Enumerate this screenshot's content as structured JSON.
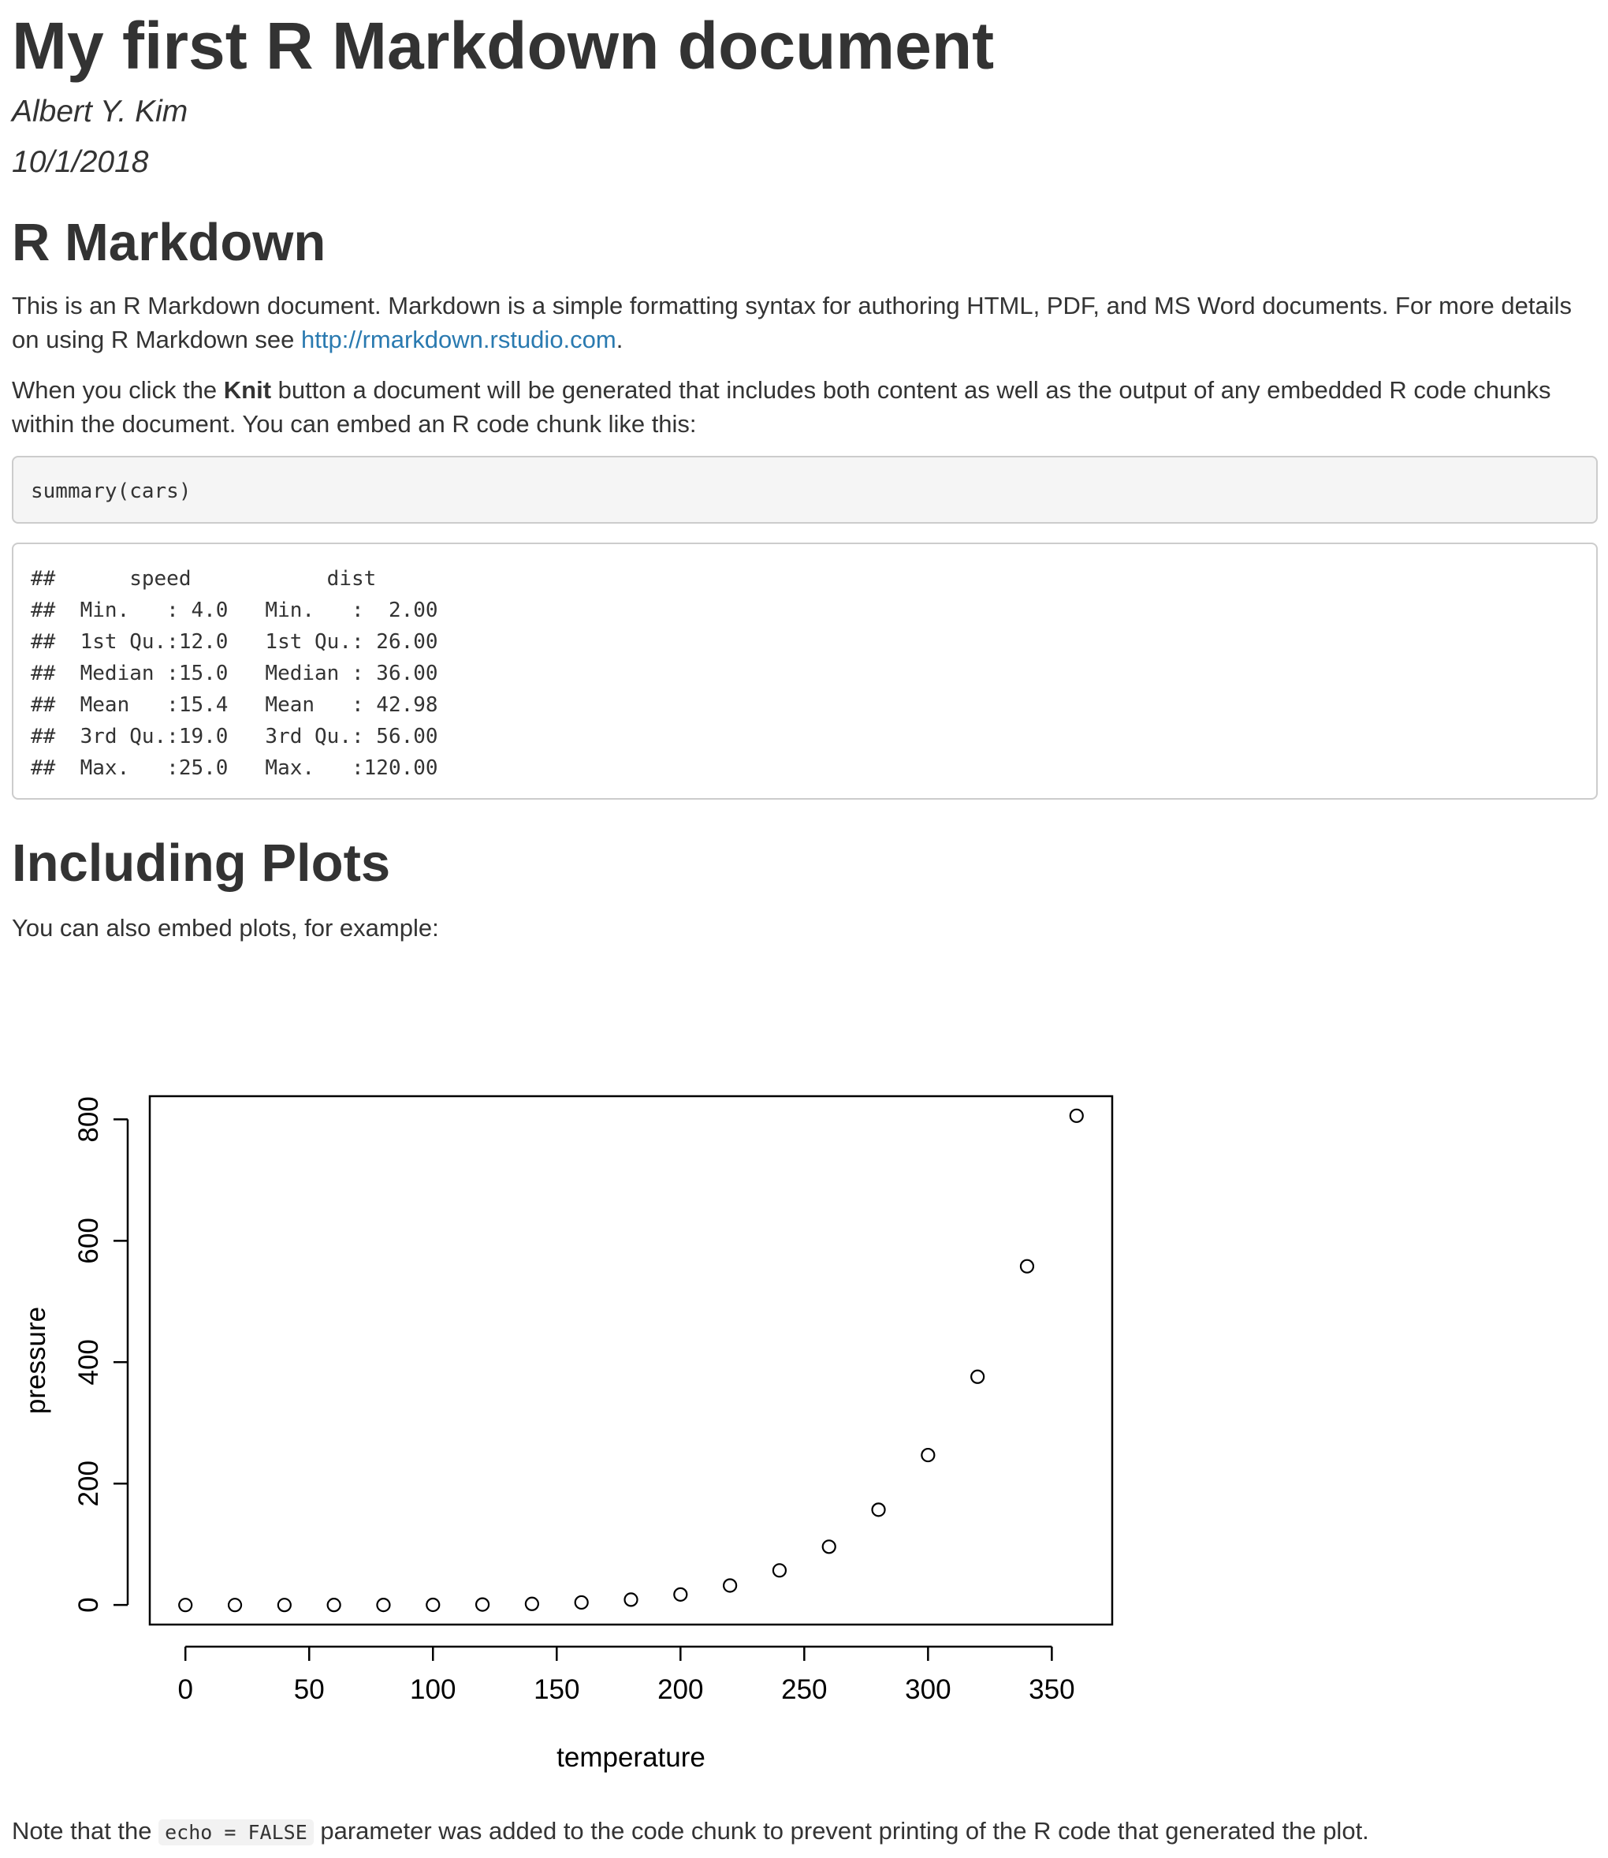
{
  "doc": {
    "title": "My first R Markdown document",
    "author": "Albert Y. Kim",
    "date": "10/1/2018"
  },
  "section1": {
    "heading": "R Markdown",
    "para1_text": "This is an R Markdown document. Markdown is a simple formatting syntax for authoring HTML, PDF, and MS Word documents. For more details on using R Markdown see ",
    "para1_link": "http://rmarkdown.rstudio.com",
    "para1_end": ".",
    "para2_pre": "When you click the ",
    "para2_bold": "Knit",
    "para2_post": " button a document will be generated that includes both content as well as the output of any embedded R code chunks within the document. You can embed an R code chunk like this:",
    "code_source": "summary(cars)",
    "code_output": [
      "##      speed           dist       ",
      "##  Min.   : 4.0   Min.   :  2.00  ",
      "##  1st Qu.:12.0   1st Qu.: 26.00  ",
      "##  Median :15.0   Median : 36.00  ",
      "##  Mean   :15.4   Mean   : 42.98  ",
      "##  3rd Qu.:19.0   3rd Qu.: 56.00  ",
      "##  Max.   :25.0   Max.   :120.00  "
    ]
  },
  "section2": {
    "heading": "Including Plots",
    "intro": "You can also embed plots, for example:",
    "note_pre": "Note that the ",
    "note_code": "echo = FALSE",
    "note_post": " parameter was added to the code chunk to prevent printing of the R code that generated the plot."
  },
  "chart_data": {
    "type": "scatter",
    "xlabel": "temperature",
    "ylabel": "pressure",
    "x": [
      0,
      20,
      40,
      60,
      80,
      100,
      120,
      140,
      160,
      180,
      200,
      220,
      240,
      260,
      280,
      300,
      320,
      340,
      360
    ],
    "y": [
      0.0002,
      0.0012,
      0.006,
      0.03,
      0.09,
      0.27,
      0.75,
      1.85,
      4.2,
      8.8,
      17.3,
      32.1,
      57,
      96,
      157,
      247,
      376,
      558,
      806
    ],
    "x_ticks": [
      0,
      50,
      100,
      150,
      200,
      250,
      300,
      350
    ],
    "y_ticks": [
      0,
      200,
      400,
      600,
      800
    ],
    "xlim": [
      -14.4,
      374.4
    ],
    "ylim": [
      -32.24,
      838.24
    ],
    "marker": "open-circle",
    "grid": false
  }
}
